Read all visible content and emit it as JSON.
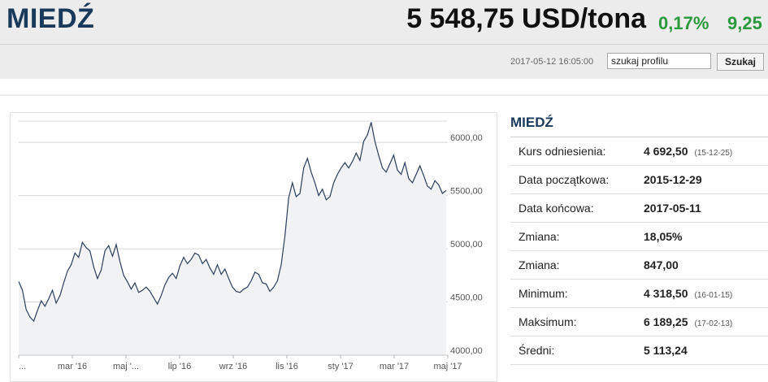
{
  "header": {
    "title": "MIEDŹ",
    "price": "5 548,75 USD/tona",
    "change_pct": "0,17%",
    "change_abs": "9,25",
    "timestamp": "2017-05-12 16:05:00"
  },
  "search": {
    "value": "szukaj profilu",
    "button_label": "Szukaj"
  },
  "info": {
    "title": "MIEDŹ",
    "rows": [
      {
        "label": "Kurs odniesienia:",
        "value": "4 692,50",
        "date": "(15-12-25)"
      },
      {
        "label": "Data początkowa:",
        "value": "2015-12-29",
        "date": ""
      },
      {
        "label": "Data końcowa:",
        "value": "2017-05-11",
        "date": ""
      },
      {
        "label": "Zmiana:",
        "value": "18,05%",
        "date": ""
      },
      {
        "label": "Zmiana:",
        "value": "847,00",
        "date": ""
      },
      {
        "label": "Minimum:",
        "value": "4 318,50",
        "date": "(16-01-15)"
      },
      {
        "label": "Maksimum:",
        "value": "6 189,25",
        "date": "(17-02-13)"
      },
      {
        "label": "Średni:",
        "value": "5 113,24",
        "date": ""
      }
    ]
  },
  "chart_data": {
    "type": "area",
    "ylim": [
      4000,
      6200
    ],
    "yticks": [
      {
        "value": 4000,
        "label": "4000,00"
      },
      {
        "value": 4500,
        "label": "4500,00"
      },
      {
        "value": 5000,
        "label": "5000,00"
      },
      {
        "value": 5500,
        "label": "5500,00"
      },
      {
        "value": 6000,
        "label": "6000,00"
      }
    ],
    "xticks": [
      "...",
      "mar '16",
      "maj '...",
      "lip '16",
      "wrz '16",
      "lis '16",
      "sty '17",
      "mar '17",
      "maj '17"
    ],
    "series": [
      {
        "values": [
          4692,
          4610,
          4430,
          4360,
          4320,
          4420,
          4510,
          4460,
          4530,
          4610,
          4490,
          4560,
          4680,
          4790,
          4850,
          4960,
          4920,
          5060,
          5010,
          4980,
          4830,
          4720,
          4800,
          4980,
          5030,
          4930,
          5040,
          4880,
          4750,
          4690,
          4620,
          4680,
          4590,
          4610,
          4640,
          4600,
          4540,
          4480,
          4560,
          4660,
          4730,
          4770,
          4720,
          4840,
          4920,
          4860,
          4900,
          4960,
          4940,
          4860,
          4900,
          4820,
          4760,
          4850,
          4760,
          4810,
          4720,
          4640,
          4600,
          4590,
          4620,
          4640,
          4700,
          4780,
          4760,
          4680,
          4670,
          4600,
          4640,
          4700,
          4850,
          5120,
          5480,
          5620,
          5490,
          5520,
          5760,
          5850,
          5720,
          5620,
          5500,
          5560,
          5460,
          5490,
          5620,
          5700,
          5760,
          5810,
          5760,
          5820,
          5900,
          5830,
          6010,
          6070,
          6189,
          6010,
          5880,
          5760,
          5720,
          5800,
          5880,
          5740,
          5700,
          5810,
          5660,
          5620,
          5700,
          5780,
          5690,
          5590,
          5560,
          5640,
          5600,
          5520,
          5548.75
        ]
      }
    ]
  },
  "colors": {
    "title": "#1a3a5c",
    "positive": "#2a9a3c",
    "line": "#2b3f5c",
    "area": "#f1f2f4"
  }
}
